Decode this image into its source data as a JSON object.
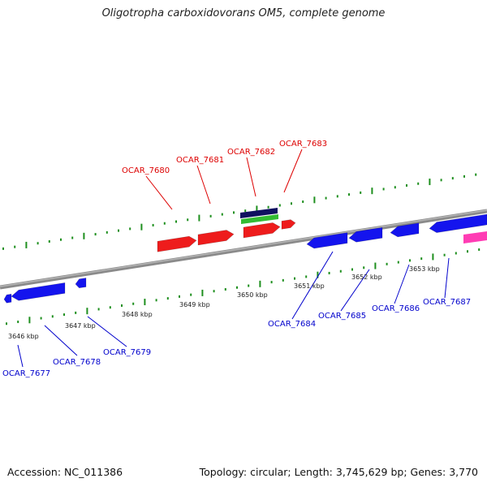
{
  "title": "Oligotropha carboxidovorans OM5, complete genome",
  "footer": {
    "accession": "Accession: NC_011386",
    "summary": "Topology: circular; Length: 3,745,629 bp; Genes: 3,770"
  },
  "colors": {
    "forward_gene": "#ee1c1c",
    "reverse_gene": "#1414ee",
    "rna_feature": "#ff3cb4",
    "backbone": "#888888",
    "tick": "#1e8f1e",
    "forward_label": "#dd0000",
    "reverse_label": "#0000cc",
    "track_navy": "#101060",
    "track_green": "#33bb33"
  },
  "scale_labels": [
    "3646 kbp",
    "3647 kbp",
    "3648 kbp",
    "3649 kbp",
    "3650 kbp",
    "3651 kbp",
    "3652 kbp",
    "3653 kbp"
  ],
  "gene_labels": {
    "forward": [
      "OCAR_7680",
      "OCAR_7681",
      "OCAR_7682",
      "OCAR_7683"
    ],
    "reverse": [
      "OCAR_7677",
      "OCAR_7678",
      "OCAR_7679",
      "OCAR_7684",
      "OCAR_7685",
      "OCAR_7686",
      "OCAR_7687"
    ]
  }
}
